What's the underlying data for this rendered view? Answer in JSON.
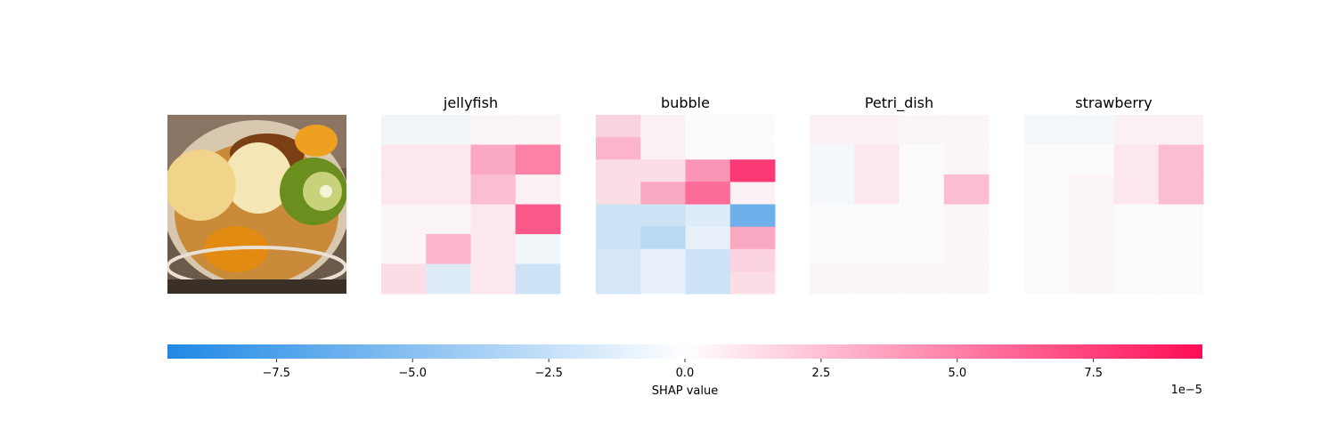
{
  "chart_data": {
    "type": "heatmap",
    "image_description_only_for_panel_0": "",
    "panels": [
      {
        "title": "",
        "kind": "photo"
      },
      {
        "title": "jellyfish",
        "kind": "shap"
      },
      {
        "title": "bubble",
        "kind": "shap"
      },
      {
        "title": "Petri_dish",
        "kind": "shap"
      },
      {
        "title": "strawberry",
        "kind": "shap"
      }
    ],
    "shap_grids_1e-5": {
      "jellyfish": [
        [
          -0.5,
          -0.5,
          0.3,
          0.3
        ],
        [
          1.0,
          1.0,
          4.0,
          6.0
        ],
        [
          1.0,
          1.0,
          3.0,
          0.5
        ],
        [
          0.3,
          0.3,
          1.0,
          8.0
        ],
        [
          0.3,
          3.5,
          1.0,
          -0.5
        ],
        [
          1.5,
          -1.5,
          1.0,
          -2.5
        ]
      ],
      "bubble": [
        [
          2.0,
          0.5,
          0.0,
          0.0
        ],
        [
          3.5,
          0.5,
          0.0,
          0.0
        ],
        [
          1.5,
          1.5,
          5.0,
          9.5
        ],
        [
          1.5,
          4.0,
          7.0,
          0.5
        ],
        [
          -2.5,
          -2.5,
          -1.5,
          -7.5
        ],
        [
          -2.5,
          -3.5,
          -1.0,
          4.0
        ],
        [
          -2.0,
          -1.0,
          -2.5,
          2.0
        ],
        [
          -2.0,
          -1.0,
          -2.5,
          1.5
        ]
      ],
      "Petri_dish": [
        [
          0.5,
          0.5,
          0.3,
          0.3
        ],
        [
          -0.3,
          1.0,
          0.0,
          0.3
        ],
        [
          -0.3,
          1.0,
          0.0,
          3.0
        ],
        [
          0.0,
          0.0,
          0.0,
          0.3
        ],
        [
          0.0,
          0.0,
          0.0,
          0.3
        ],
        [
          0.3,
          0.3,
          0.3,
          0.3
        ]
      ],
      "strawberry": [
        [
          -0.3,
          -0.3,
          0.5,
          0.5
        ],
        [
          0.0,
          0.0,
          1.0,
          3.0
        ],
        [
          0.0,
          0.3,
          1.0,
          3.0
        ],
        [
          0.0,
          0.3,
          0.0,
          0.0
        ],
        [
          0.0,
          0.3,
          0.0,
          0.0
        ],
        [
          0.0,
          0.3,
          0.0,
          0.0
        ]
      ]
    },
    "colorbar": {
      "range": [
        -9.5,
        9.5
      ],
      "ticks": [
        "−7.5",
        "−5.0",
        "−2.5",
        "0.0",
        "2.5",
        "5.0",
        "7.5"
      ],
      "tick_values": [
        -7.5,
        -5.0,
        -2.5,
        0.0,
        2.5,
        5.0,
        7.5
      ],
      "label": "SHAP value",
      "offset_text": "1e−5",
      "negative_color": "#1e88e5",
      "positive_color": "#ff0d57",
      "mid_color": "#ffffff"
    }
  }
}
